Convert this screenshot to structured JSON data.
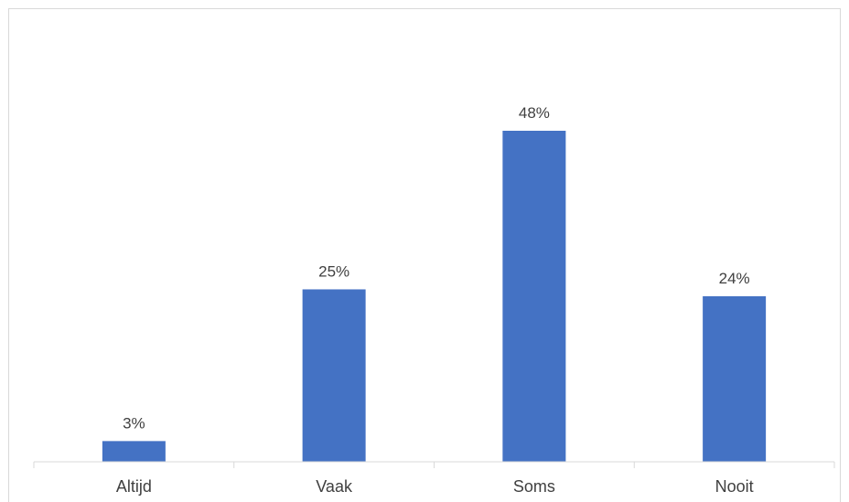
{
  "chart_data": {
    "type": "bar",
    "categories": [
      "Altijd",
      "Vaak",
      "Soms",
      "Nooit"
    ],
    "values": [
      3,
      25,
      48,
      24
    ],
    "value_labels": [
      "3%",
      "25%",
      "48%",
      "24%"
    ],
    "unit": "%",
    "title": "",
    "xlabel": "",
    "ylabel": "",
    "ylim": [
      0,
      48
    ],
    "grid": false,
    "legend": "none",
    "bar_color": "#4472c4",
    "axis_color": "#d9d9d9",
    "text_color": "#404040"
  }
}
